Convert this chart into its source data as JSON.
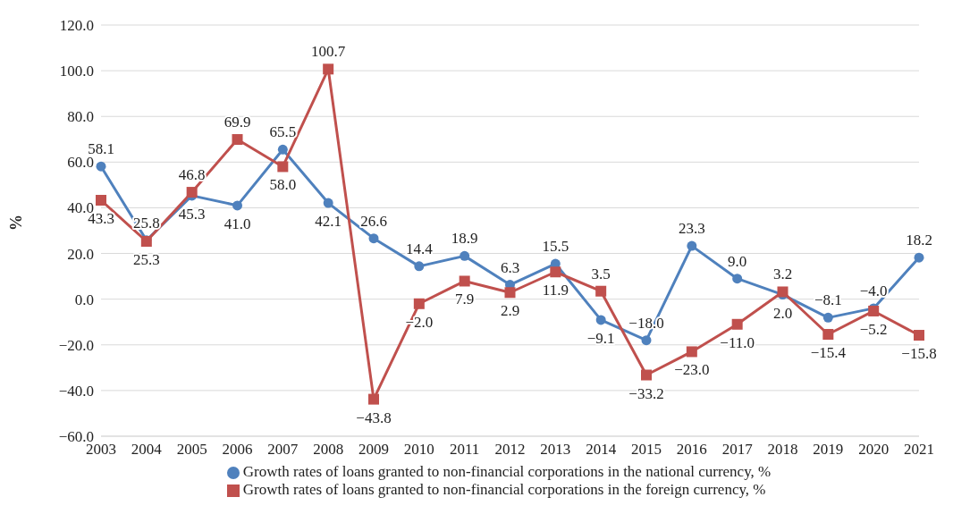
{
  "chart_data": {
    "type": "line",
    "ylabel": "%",
    "categories": [
      "2003",
      "2004",
      "2005",
      "2006",
      "2007",
      "2008",
      "2009",
      "2010",
      "2011",
      "2012",
      "2013",
      "2014",
      "2015",
      "2016",
      "2017",
      "2018",
      "2019",
      "2020",
      "2021"
    ],
    "series": [
      {
        "name": "Growth rates of loans granted to non-financial corporations in the national currency, %",
        "color": "#4f81bd",
        "marker": "circle",
        "values": [
          58.1,
          25.8,
          45.3,
          41.0,
          65.5,
          42.1,
          26.6,
          14.4,
          18.9,
          6.3,
          15.5,
          -9.1,
          -18.0,
          23.3,
          9.0,
          2.0,
          -8.1,
          -4.0,
          18.2
        ],
        "value_labels": [
          "58.1",
          "25.8",
          "45.3",
          "41.0",
          "65.5",
          "42.1",
          "26.6",
          "14.4",
          "18.9",
          "6.3",
          "15.5",
          "−9.1",
          "−18.0",
          "23.3",
          "9.0",
          "2.0",
          "−8.1",
          "−4.0",
          "18.2"
        ]
      },
      {
        "name": "Growth rates of loans granted to non-financial corporations in the foreign currency, %",
        "color": "#c0504d",
        "marker": "square",
        "values": [
          43.3,
          25.3,
          46.8,
          69.9,
          58.0,
          100.7,
          -43.8,
          -2.0,
          7.9,
          2.9,
          11.9,
          3.5,
          -33.2,
          -23.0,
          -11.0,
          3.2,
          -15.4,
          -5.2,
          -15.8
        ],
        "value_labels": [
          "43.3",
          "25.3",
          "46.8",
          "69.9",
          "58.0",
          "100.7",
          "−43.8",
          "−2.0",
          "7.9",
          "2.9",
          "11.9",
          "3.5",
          "−33.2",
          "−23.0",
          "−11.0",
          "3.2",
          "−15.4",
          "−5.2",
          "−15.8"
        ]
      }
    ],
    "ylim": [
      -60,
      120
    ],
    "yticks": [
      {
        "value": -60,
        "label": "−60.0"
      },
      {
        "value": -40,
        "label": "−40.0"
      },
      {
        "value": -20,
        "label": "−20.0"
      },
      {
        "value": 0,
        "label": "0.0"
      },
      {
        "value": 20,
        "label": "20.0"
      },
      {
        "value": 40,
        "label": "40.0"
      },
      {
        "value": 60,
        "label": "60.0"
      },
      {
        "value": 80,
        "label": "80.0"
      },
      {
        "value": 100,
        "label": "100.0"
      },
      {
        "value": 120,
        "label": "120.0"
      }
    ],
    "grid": "y",
    "legend": "bottom",
    "line_style": "solid"
  }
}
